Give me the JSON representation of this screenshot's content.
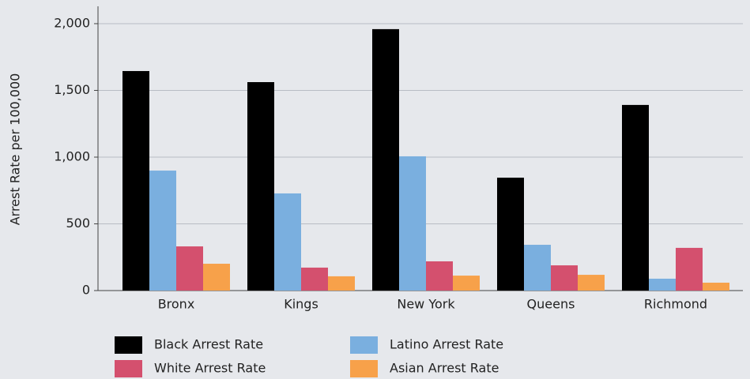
{
  "chart_data": {
    "type": "bar",
    "y_label": "Arrest Rate per 100,000",
    "categories": [
      "Bronx",
      "Kings",
      "New York",
      "Queens",
      "Richmond"
    ],
    "series": [
      {
        "name": "Black Arrest Rate",
        "color": "#000000",
        "values": [
          1645,
          1562,
          1959,
          846,
          1391
        ]
      },
      {
        "name": "Latino Arrest Rate",
        "color": "#7aafdf",
        "values": [
          899,
          728,
          1006,
          343,
          89
        ]
      },
      {
        "name": "White Arrest Rate",
        "color": "#d4506e",
        "values": [
          331,
          172,
          219,
          189,
          320
        ]
      },
      {
        "name": "Asian Arrest Rate",
        "color": "#f7a14a",
        "values": [
          201,
          107,
          112,
          118,
          59
        ]
      }
    ],
    "ylim": [
      0,
      2130
    ],
    "yticks": [
      0,
      {
        "value": 500,
        "label": "500"
      },
      {
        "value": 1000,
        "label": "1,000"
      },
      {
        "value": 1500,
        "label": "1,500"
      },
      {
        "value": 2000,
        "label": "2,000"
      }
    ],
    "grid": true,
    "legend": "bottom"
  }
}
